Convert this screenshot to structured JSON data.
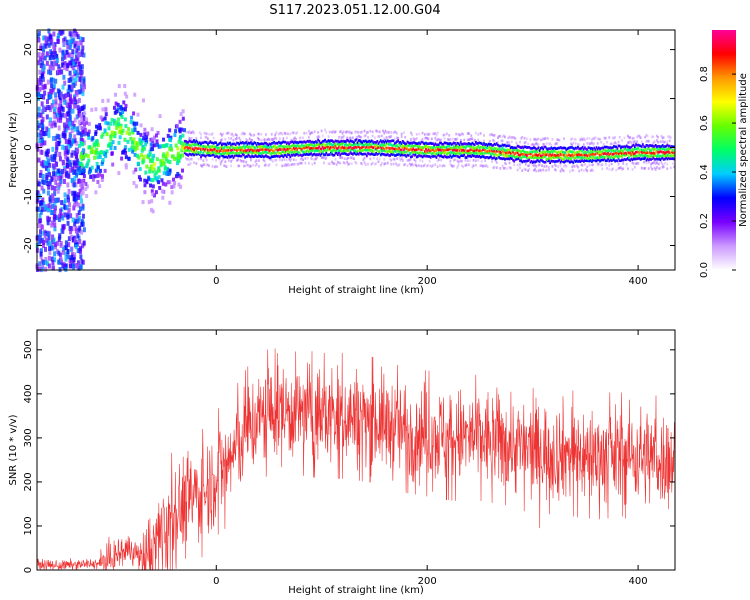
{
  "title": "S117.2023.051.12.00.G04",
  "chart_data": [
    {
      "type": "heatmap",
      "xlabel": "Height of straight line (km)",
      "ylabel": "Frequency (Hz)",
      "xlim": [
        -170,
        435
      ],
      "ylim": [
        -25,
        24
      ],
      "xticks": [
        0,
        200,
        400
      ],
      "yticks": [
        -20,
        -10,
        0,
        10,
        20
      ],
      "colorbar": {
        "label": "Normalized spectral amplitude",
        "range": [
          0,
          0.98
        ],
        "ticks": [
          0.0,
          0.2,
          0.4,
          0.6,
          0.8
        ],
        "colors": [
          "#ffffff",
          "#cc99ff",
          "#7700ff",
          "#0000ff",
          "#00ccff",
          "#00ff66",
          "#66ff00",
          "#ffff00",
          "#ff9900",
          "#ff0000",
          "#ff0099"
        ]
      },
      "ridge": [
        {
          "x": -120,
          "y": -1.5
        },
        {
          "x": -110,
          "y": 0
        },
        {
          "x": -100,
          "y": 3
        },
        {
          "x": -90,
          "y": 4
        },
        {
          "x": -80,
          "y": 2
        },
        {
          "x": -70,
          "y": -2
        },
        {
          "x": -60,
          "y": -4
        },
        {
          "x": -50,
          "y": -2
        },
        {
          "x": -40,
          "y": -1
        },
        {
          "x": -30,
          "y": 0
        },
        {
          "x": 0,
          "y": -0.5
        },
        {
          "x": 50,
          "y": -0.5
        },
        {
          "x": 100,
          "y": 0
        },
        {
          "x": 150,
          "y": 0
        },
        {
          "x": 200,
          "y": -0.5
        },
        {
          "x": 250,
          "y": -0.5
        },
        {
          "x": 300,
          "y": -1.5
        },
        {
          "x": 350,
          "y": -1.5
        },
        {
          "x": 400,
          "y": -1
        },
        {
          "x": 435,
          "y": -1
        }
      ]
    },
    {
      "type": "line",
      "xlabel": "Height of straight line (km)",
      "ylabel": "SNR (10 * v/v)",
      "xlim": [
        -170,
        435
      ],
      "ylim": [
        0,
        545
      ],
      "xticks": [
        0,
        200,
        400
      ],
      "yticks": [
        0,
        100,
        200,
        300,
        400,
        500
      ],
      "series": [
        {
          "color": "#ee3333",
          "x": [
            -170,
            -150,
            -130,
            -110,
            -100,
            -90,
            -80,
            -70,
            -60,
            -50,
            -40,
            -30,
            -20,
            -10,
            0,
            10,
            20,
            30,
            50,
            75,
            100,
            125,
            150,
            175,
            200,
            225,
            250,
            275,
            300,
            325,
            350,
            375,
            400,
            425,
            435
          ],
          "y": [
            12,
            10,
            12,
            15,
            25,
            40,
            50,
            20,
            40,
            100,
            130,
            150,
            170,
            180,
            220,
            240,
            280,
            320,
            360,
            360,
            350,
            350,
            340,
            320,
            310,
            300,
            300,
            290,
            270,
            270,
            260,
            260,
            260,
            250,
            250
          ]
        }
      ]
    }
  ]
}
